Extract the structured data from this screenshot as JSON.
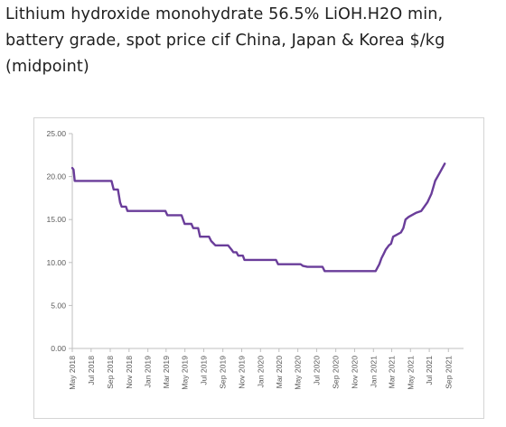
{
  "page": {
    "title": "Lithium hydroxide monohydrate 56.5% LiOH.H2O min, battery grade, spot price cif China, Japan & Korea $/kg (midpoint)"
  },
  "colors": {
    "line": "#6a3d9a",
    "axis": "#bfbfbf",
    "tick_text": "#5a5a5a",
    "frame": "#d4d4d4"
  },
  "chart_data": {
    "type": "line",
    "title": "Lithium hydroxide monohydrate 56.5% LiOH.H2O min, battery grade, spot price cif China, Japan & Korea $/kg (midpoint)",
    "xlabel": "",
    "ylabel": "",
    "ylim": [
      0,
      25
    ],
    "xlim": [
      "2018-05-01",
      "2021-10-20"
    ],
    "grid": false,
    "legend": "none",
    "y_ticks": [
      "0.00",
      "5.00",
      "10.00",
      "15.00",
      "20.00",
      "25.00"
    ],
    "x_ticks": [
      {
        "date": "2018-05-01",
        "label": "May 2018"
      },
      {
        "date": "2018-07-01",
        "label": "Jul 2018"
      },
      {
        "date": "2018-09-01",
        "label": "Sep 2018"
      },
      {
        "date": "2018-11-01",
        "label": "Nov 2018"
      },
      {
        "date": "2019-01-01",
        "label": "Jan 2019"
      },
      {
        "date": "2019-03-01",
        "label": "Mar 2019"
      },
      {
        "date": "2019-05-01",
        "label": "May 2019"
      },
      {
        "date": "2019-07-01",
        "label": "Jul 2019"
      },
      {
        "date": "2019-09-01",
        "label": "Sep 2019"
      },
      {
        "date": "2019-11-01",
        "label": "Nov 2019"
      },
      {
        "date": "2020-01-01",
        "label": "Jan 2020"
      },
      {
        "date": "2020-03-01",
        "label": "Mar 2020"
      },
      {
        "date": "2020-05-01",
        "label": "May 2020"
      },
      {
        "date": "2020-07-01",
        "label": "Jul 2020"
      },
      {
        "date": "2020-09-01",
        "label": "Sep 2020"
      },
      {
        "date": "2020-11-01",
        "label": "Nov 2020"
      },
      {
        "date": "2021-01-01",
        "label": "Jan 2021"
      },
      {
        "date": "2021-03-01",
        "label": "Mar 2021"
      },
      {
        "date": "2021-05-01",
        "label": "May 2021"
      },
      {
        "date": "2021-07-01",
        "label": "Jul 2021"
      },
      {
        "date": "2021-09-01",
        "label": "Sep 2021"
      }
    ],
    "series": [
      {
        "name": "",
        "color": "#6a3d9a",
        "points": [
          [
            "2018-05-01",
            21.0
          ],
          [
            "2018-05-05",
            20.8
          ],
          [
            "2018-05-09",
            19.5
          ],
          [
            "2018-09-05",
            19.5
          ],
          [
            "2018-09-12",
            18.5
          ],
          [
            "2018-09-26",
            18.5
          ],
          [
            "2018-10-03",
            17.0
          ],
          [
            "2018-10-08",
            16.5
          ],
          [
            "2018-10-22",
            16.5
          ],
          [
            "2018-10-27",
            16.0
          ],
          [
            "2019-02-27",
            16.0
          ],
          [
            "2019-03-05",
            15.5
          ],
          [
            "2019-04-20",
            15.5
          ],
          [
            "2019-04-30",
            14.5
          ],
          [
            "2019-05-22",
            14.5
          ],
          [
            "2019-05-28",
            14.0
          ],
          [
            "2019-06-13",
            14.0
          ],
          [
            "2019-06-19",
            13.0
          ],
          [
            "2019-07-18",
            13.0
          ],
          [
            "2019-07-25",
            12.5
          ],
          [
            "2019-08-08",
            12.0
          ],
          [
            "2019-09-18",
            12.0
          ],
          [
            "2019-09-29",
            11.5
          ],
          [
            "2019-10-05",
            11.2
          ],
          [
            "2019-10-15",
            11.2
          ],
          [
            "2019-10-21",
            10.8
          ],
          [
            "2019-11-05",
            10.8
          ],
          [
            "2019-11-10",
            10.3
          ],
          [
            "2020-02-20",
            10.3
          ],
          [
            "2020-02-27",
            9.8
          ],
          [
            "2020-05-10",
            9.8
          ],
          [
            "2020-05-18",
            9.6
          ],
          [
            "2020-06-01",
            9.5
          ],
          [
            "2020-07-20",
            9.5
          ],
          [
            "2020-07-27",
            9.0
          ],
          [
            "2021-01-08",
            9.0
          ],
          [
            "2021-01-20",
            9.8
          ],
          [
            "2021-01-27",
            10.5
          ],
          [
            "2021-02-03",
            11.0
          ],
          [
            "2021-02-10",
            11.5
          ],
          [
            "2021-02-20",
            12.0
          ],
          [
            "2021-02-27",
            12.2
          ],
          [
            "2021-03-06",
            13.0
          ],
          [
            "2021-03-16",
            13.2
          ],
          [
            "2021-03-31",
            13.5
          ],
          [
            "2021-04-08",
            14.0
          ],
          [
            "2021-04-15",
            15.0
          ],
          [
            "2021-04-25",
            15.3
          ],
          [
            "2021-05-05",
            15.5
          ],
          [
            "2021-05-20",
            15.8
          ],
          [
            "2021-06-05",
            16.0
          ],
          [
            "2021-06-15",
            16.5
          ],
          [
            "2021-06-25",
            17.0
          ],
          [
            "2021-07-08",
            18.0
          ],
          [
            "2021-07-20",
            19.5
          ],
          [
            "2021-08-05",
            20.5
          ],
          [
            "2021-08-20",
            21.5
          ]
        ]
      }
    ]
  }
}
